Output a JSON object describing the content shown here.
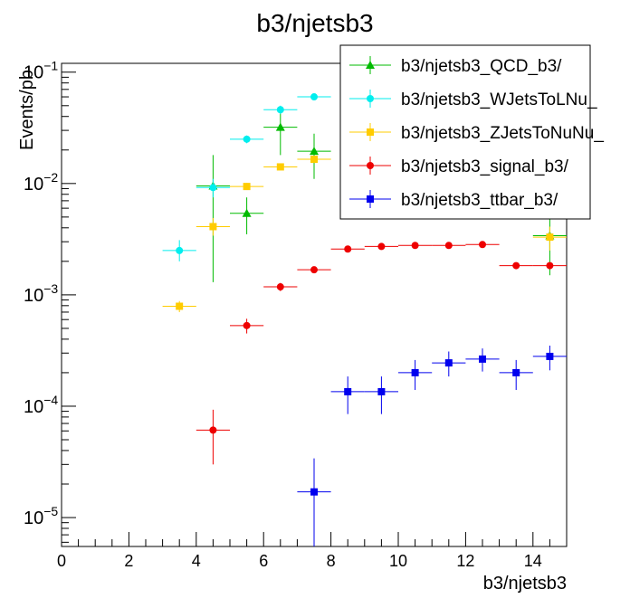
{
  "chart_data": {
    "type": "scatter",
    "title": "b3/njetsb3",
    "xlabel": "b3/njetsb3",
    "ylabel": "Events/pb",
    "xlim": [
      0,
      15
    ],
    "ylim": [
      5.5e-06,
      0.12
    ],
    "yscale": "log",
    "x_ticks": [
      "0",
      "2",
      "4",
      "6",
      "8",
      "10",
      "12",
      "14"
    ],
    "y_ticks": [
      {
        "base": "10",
        "exp": "−5",
        "value": 1e-05
      },
      {
        "base": "10",
        "exp": "−4",
        "value": 0.0001
      },
      {
        "base": "10",
        "exp": "−3",
        "value": 0.001
      },
      {
        "base": "10",
        "exp": "−2",
        "value": 0.01
      },
      {
        "base": "10",
        "exp": "−1",
        "value": 0.1
      }
    ],
    "grid": false,
    "legend_position": "top-right",
    "series": [
      {
        "name": "b3/njetsb3_QCD_b3/",
        "color": "#00bb00",
        "marker": "triangle",
        "points": [
          {
            "x": 4.5,
            "y": 0.0095,
            "lo": 0.0013,
            "hi": 0.018
          },
          {
            "x": 5.5,
            "y": 0.0054,
            "lo": 0.0035,
            "hi": 0.0075
          },
          {
            "x": 6.5,
            "y": 0.032,
            "lo": 0.018,
            "hi": 0.045
          },
          {
            "x": 7.5,
            "y": 0.0195,
            "lo": 0.011,
            "hi": 0.028
          },
          {
            "x": 14.5,
            "y": 0.0034,
            "lo": 0.0015,
            "hi": 0.0048
          }
        ]
      },
      {
        "name": "b3/njetsb3_WJetsToLNu_",
        "color": "#00eeee",
        "marker": "circle",
        "points": [
          {
            "x": 3.5,
            "y": 0.0025,
            "lo": 0.002,
            "hi": 0.0031
          },
          {
            "x": 4.5,
            "y": 0.0092,
            "lo": 0.0075,
            "hi": 0.011
          },
          {
            "x": 5.5,
            "y": 0.025,
            "lo": 0.023,
            "hi": 0.027
          },
          {
            "x": 6.5,
            "y": 0.046,
            "lo": 0.042,
            "hi": 0.05
          },
          {
            "x": 7.5,
            "y": 0.06,
            "lo": 0.056,
            "hi": 0.064
          }
        ]
      },
      {
        "name": "b3/njetsb3_ZJetsToNuNu_",
        "color": "#ffcc00",
        "marker": "square",
        "points": [
          {
            "x": 3.5,
            "y": 0.00079,
            "lo": 0.0007,
            "hi": 0.00088
          },
          {
            "x": 4.5,
            "y": 0.0041,
            "lo": 0.0034,
            "hi": 0.0049
          },
          {
            "x": 5.5,
            "y": 0.0094,
            "lo": 0.0088,
            "hi": 0.0101
          },
          {
            "x": 6.5,
            "y": 0.0141,
            "lo": 0.0134,
            "hi": 0.0149
          },
          {
            "x": 7.5,
            "y": 0.0165,
            "lo": 0.0155,
            "hi": 0.0176
          },
          {
            "x": 14.5,
            "y": 0.0033,
            "lo": 0.0025,
            "hi": 0.0041
          }
        ]
      },
      {
        "name": "b3/njetsb3_signal_b3/",
        "color": "#ee0000",
        "marker": "circle",
        "points": [
          {
            "x": 4.5,
            "y": 6.1e-05,
            "lo": 3e-05,
            "hi": 9.3e-05
          },
          {
            "x": 5.5,
            "y": 0.00053,
            "lo": 0.00045,
            "hi": 0.00061
          },
          {
            "x": 6.5,
            "y": 0.00118,
            "lo": 0.00108,
            "hi": 0.00128
          },
          {
            "x": 7.5,
            "y": 0.00168,
            "lo": 0.00158,
            "hi": 0.00178
          },
          {
            "x": 8.5,
            "y": 0.00258,
            "lo": 0.00248,
            "hi": 0.00268
          },
          {
            "x": 9.5,
            "y": 0.00272,
            "lo": 0.00262,
            "hi": 0.00282
          },
          {
            "x": 10.5,
            "y": 0.00278,
            "lo": 0.00268,
            "hi": 0.00288
          },
          {
            "x": 11.5,
            "y": 0.00278,
            "lo": 0.00268,
            "hi": 0.00288
          },
          {
            "x": 12.5,
            "y": 0.00283,
            "lo": 0.00273,
            "hi": 0.00293
          },
          {
            "x": 13.5,
            "y": 0.00183,
            "lo": 0.00173,
            "hi": 0.00193
          },
          {
            "x": 14.5,
            "y": 0.00183,
            "lo": 0.00173,
            "hi": 0.00193
          }
        ]
      },
      {
        "name": "b3/njetsb3_ttbar_b3/",
        "color": "#0000ee",
        "marker": "square",
        "points": [
          {
            "x": 7.5,
            "y": 1.7e-05,
            "lo": 5.5e-06,
            "hi": 3.4e-05
          },
          {
            "x": 8.5,
            "y": 0.000135,
            "lo": 8.5e-05,
            "hi": 0.000185
          },
          {
            "x": 9.5,
            "y": 0.000135,
            "lo": 8.5e-05,
            "hi": 0.000185
          },
          {
            "x": 10.5,
            "y": 0.0002,
            "lo": 0.00014,
            "hi": 0.00026
          },
          {
            "x": 11.5,
            "y": 0.000245,
            "lo": 0.000185,
            "hi": 0.00031
          },
          {
            "x": 12.5,
            "y": 0.000265,
            "lo": 0.000205,
            "hi": 0.00033
          },
          {
            "x": 13.5,
            "y": 0.0002,
            "lo": 0.00014,
            "hi": 0.00026
          },
          {
            "x": 14.5,
            "y": 0.00028,
            "lo": 0.00021,
            "hi": 0.00035
          }
        ]
      }
    ]
  }
}
